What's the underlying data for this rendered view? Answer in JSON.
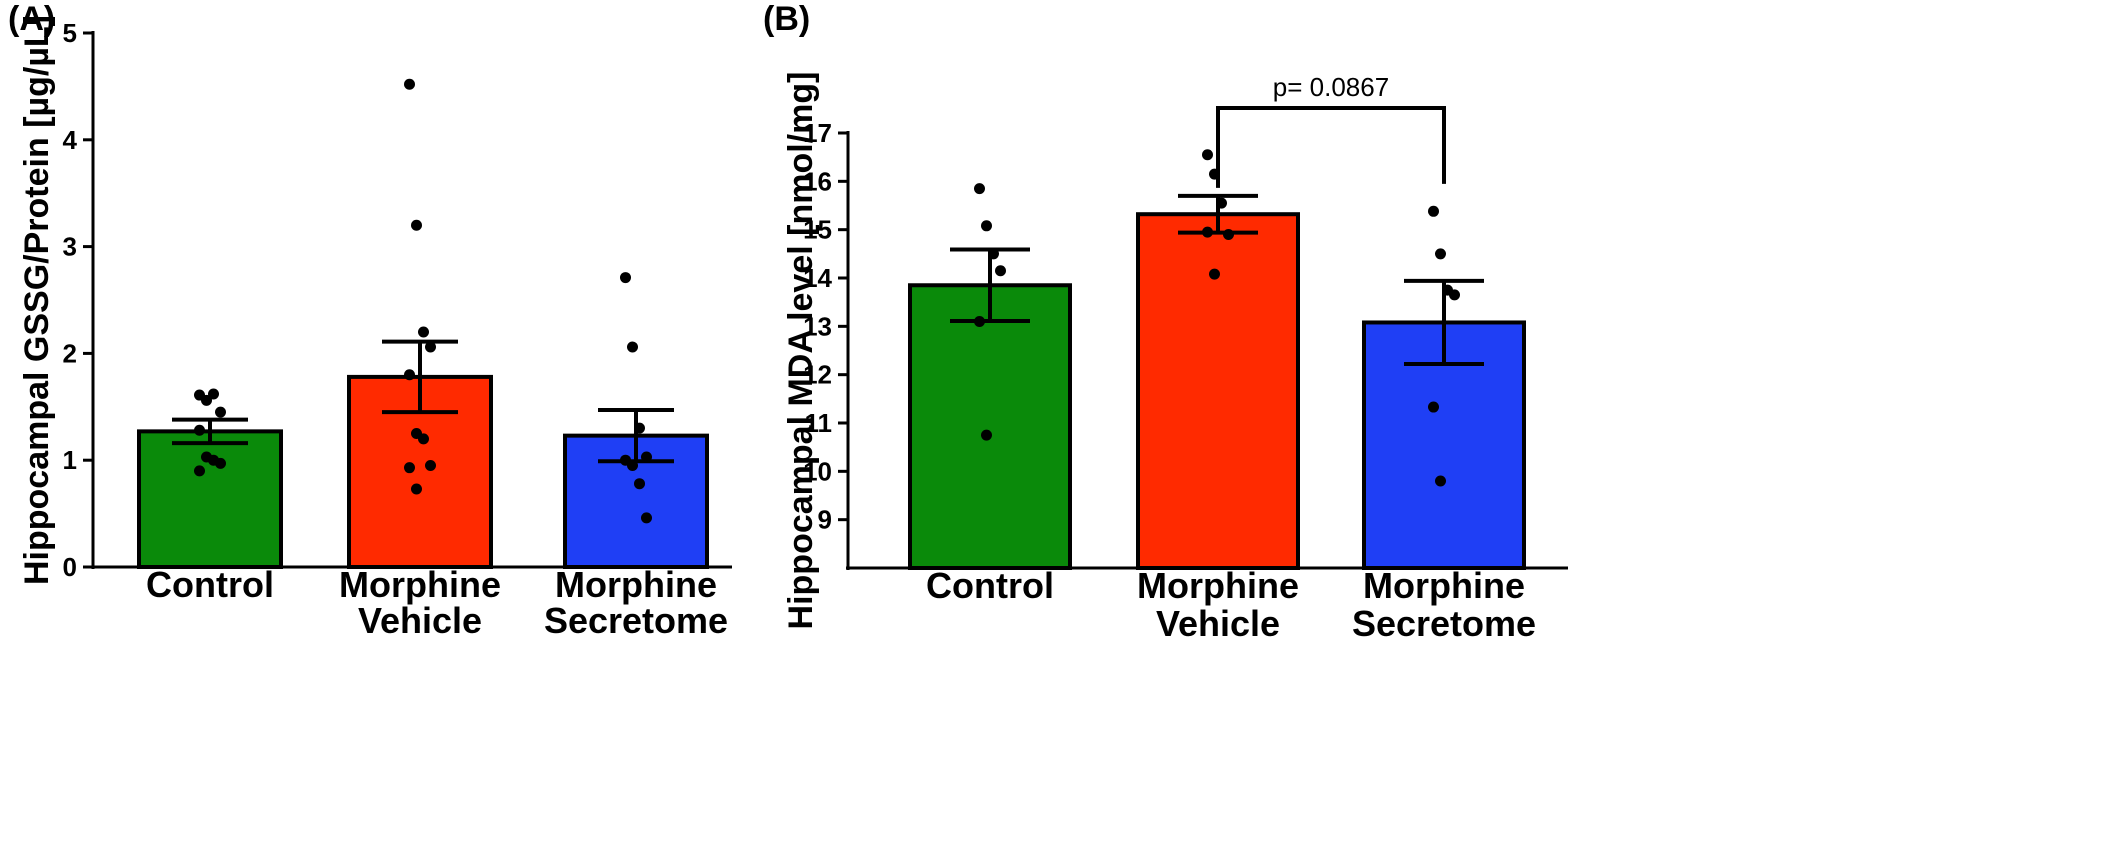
{
  "chart_data": [
    {
      "type": "bar",
      "panel_label": "(A)",
      "title": "",
      "xlabel": "",
      "ylabel": "Hippocampal GSSG/Protein [µg/µL]",
      "ylim": [
        0,
        5
      ],
      "yticks": [
        0,
        1,
        2,
        3,
        4,
        5
      ],
      "categories": [
        {
          "lines": [
            "Control"
          ]
        },
        {
          "lines": [
            "Morphine",
            "Vehicle"
          ]
        },
        {
          "lines": [
            "Morphine",
            "Secretome"
          ]
        }
      ],
      "values": [
        1.27,
        1.78,
        1.23
      ],
      "sem": [
        0.11,
        0.33,
        0.24
      ],
      "bar_colors": [
        "#0a8a0a",
        "#ff2a00",
        "#1f3ff5"
      ],
      "points": [
        [
          1.61,
          1.56,
          1.62,
          1.45,
          1.28,
          1.03,
          1.0,
          0.97,
          0.9
        ],
        [
          4.52,
          3.2,
          2.2,
          2.06,
          1.8,
          1.25,
          1.2,
          0.95,
          0.93,
          0.73
        ],
        [
          2.71,
          2.06,
          1.3,
          1.03,
          1.0,
          0.95,
          0.78,
          0.46
        ]
      ],
      "grid": false,
      "legend": "none"
    },
    {
      "type": "bar",
      "panel_label": "(B)",
      "title": "",
      "xlabel": "",
      "ylabel": "Hippocampal MDA level [nmol/mg]",
      "ylim": [
        8,
        17
      ],
      "yticks": [
        9,
        10,
        11,
        12,
        13,
        14,
        15,
        16,
        17
      ],
      "categories": [
        {
          "lines": [
            "Control"
          ]
        },
        {
          "lines": [
            "Morphine",
            "Vehicle"
          ]
        },
        {
          "lines": [
            "Morphine",
            "Secretome"
          ]
        }
      ],
      "values": [
        13.85,
        15.32,
        13.08
      ],
      "sem": [
        0.74,
        0.38,
        0.86
      ],
      "bar_colors": [
        "#0a8a0a",
        "#ff2a00",
        "#1f3ff5"
      ],
      "points": [
        [
          15.85,
          15.08,
          14.5,
          14.15,
          13.1,
          10.75
        ],
        [
          16.55,
          16.15,
          15.55,
          14.9,
          14.95,
          14.08
        ],
        [
          15.38,
          14.5,
          13.75,
          13.65,
          11.33,
          9.8
        ]
      ],
      "annotation": {
        "text": "p= 0.0867",
        "from": 1,
        "to": 2
      },
      "grid": false,
      "legend": "none"
    }
  ]
}
